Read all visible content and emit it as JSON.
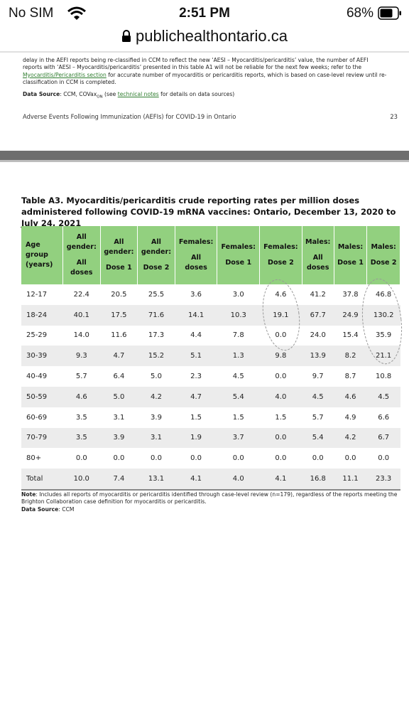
{
  "status_bar": {
    "carrier": "No SIM",
    "time": "2:51 PM",
    "battery": "68%"
  },
  "url": "publichealthontario.ca",
  "previous_page": {
    "paragraph": {
      "before": "delay in the AEFI reports being re-classified in CCM to reflect the new ‘AESI – Myocarditis/pericarditis’ value, the number of AEFI reports with ‘AESI – Myocarditis/pericarditis’ presented in this table A1 will not be reliable for the next few weeks; refer to the",
      "link": "Myocarditis/Pericarditis section",
      "after": "for accurate number of myocarditis or pericarditis reports, which is based on case-level review until re-classification in CCM is completed."
    },
    "data_source": {
      "label": "Data Source",
      "before": ": CCM, COVax",
      "subscript": "ON",
      "middle": " (see",
      "link": "technical notes",
      "after": "for details on data sources)"
    },
    "footer_title": "Adverse Events Following Immunization (AEFIs) for COVID-19 in Ontario",
    "page_number": "23"
  },
  "table": {
    "title": "Table A3. Myocarditis/pericarditis crude reporting rates per million doses administered following COVID-19 mRNA vaccines: Ontario, December 13, 2020 to July 24, 2021",
    "headers": [
      [
        "Age",
        "group",
        "(years)"
      ],
      [
        "All",
        "gender:",
        "",
        "All",
        "doses"
      ],
      [
        "All",
        "gender:",
        "",
        "Dose 1"
      ],
      [
        "All",
        "gender:",
        "",
        "Dose 2"
      ],
      [
        "Females:",
        "",
        "All",
        "doses"
      ],
      [
        "Females:",
        "",
        "Dose 1"
      ],
      [
        "Females:",
        "",
        "Dose 2"
      ],
      [
        "Males:",
        "",
        "All",
        "doses"
      ],
      [
        "Males:",
        "",
        "Dose 1"
      ],
      [
        "Males:",
        "",
        "Dose 2"
      ]
    ],
    "rows": [
      [
        "12-17",
        "22.4",
        "20.5",
        "25.5",
        "3.6",
        "3.0",
        "4.6",
        "41.2",
        "37.8",
        "46.8"
      ],
      [
        "18-24",
        "40.1",
        "17.5",
        "71.6",
        "14.1",
        "10.3",
        "19.1",
        "67.7",
        "24.9",
        "130.2"
      ],
      [
        "25-29",
        "14.0",
        "11.6",
        "17.3",
        "4.4",
        "7.8",
        "0.0",
        "24.0",
        "15.4",
        "35.9"
      ],
      [
        "30-39",
        "9.3",
        "4.7",
        "15.2",
        "5.1",
        "1.3",
        "9.8",
        "13.9",
        "8.2",
        "21.1"
      ],
      [
        "40-49",
        "5.7",
        "6.4",
        "5.0",
        "2.3",
        "4.5",
        "0.0",
        "9.7",
        "8.7",
        "10.8"
      ],
      [
        "50-59",
        "4.6",
        "5.0",
        "4.2",
        "4.7",
        "5.4",
        "4.0",
        "4.5",
        "4.6",
        "4.5"
      ],
      [
        "60-69",
        "3.5",
        "3.1",
        "3.9",
        "1.5",
        "1.5",
        "1.5",
        "5.7",
        "4.9",
        "6.6"
      ],
      [
        "70-79",
        "3.5",
        "3.9",
        "3.1",
        "1.9",
        "3.7",
        "0.0",
        "5.4",
        "4.2",
        "6.7"
      ],
      [
        "80+",
        "0.0",
        "0.0",
        "0.0",
        "0.0",
        "0.0",
        "0.0",
        "0.0",
        "0.0",
        "0.0"
      ],
      [
        "Total",
        "10.0",
        "7.4",
        "13.1",
        "4.1",
        "4.0",
        "4.1",
        "16.8",
        "11.1",
        "23.3"
      ]
    ]
  },
  "note": {
    "label": "Note",
    "text": ": Includes all reports of myocarditis or pericarditis identified through case-level review (n=179), regardless of the reports meeting the Brighton Collaboration case definition for myocarditis or pericarditis."
  },
  "data_source": {
    "label": "Data Source",
    "text": ": CCM"
  }
}
